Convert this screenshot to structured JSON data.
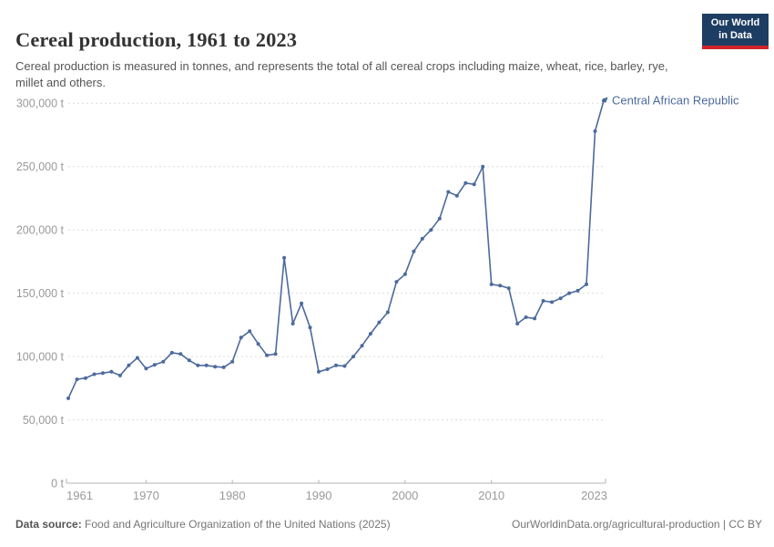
{
  "header": {
    "title": "Cereal production, 1961 to 2023",
    "subtitle": "Cereal production is measured in tonnes, and represents the total of all cereal crops including maize, wheat, rice, barley, rye, millet and others.",
    "logo": {
      "line1": "Our World",
      "line2": "in Data"
    }
  },
  "chart_data": {
    "type": "line",
    "title": "Cereal production, 1961 to 2023",
    "unit": "tonnes",
    "grid": "horizontal dashed gridlines",
    "legend_position": "end-of-line label",
    "xlim": [
      1961,
      2023
    ],
    "ylim": [
      0,
      300000
    ],
    "series": [
      {
        "name": "Central African Republic",
        "x": [
          1961,
          1962,
          1963,
          1964,
          1965,
          1966,
          1967,
          1968,
          1969,
          1970,
          1971,
          1972,
          1973,
          1974,
          1975,
          1976,
          1977,
          1978,
          1979,
          1980,
          1981,
          1982,
          1983,
          1984,
          1985,
          1986,
          1987,
          1988,
          1989,
          1990,
          1991,
          1992,
          1993,
          1994,
          1995,
          1996,
          1997,
          1998,
          1999,
          2000,
          2001,
          2002,
          2003,
          2004,
          2005,
          2006,
          2007,
          2008,
          2009,
          2010,
          2011,
          2012,
          2013,
          2014,
          2015,
          2016,
          2017,
          2018,
          2019,
          2020,
          2021,
          2022,
          2023
        ],
        "values": [
          67000,
          82000,
          83000,
          86000,
          87000,
          88000,
          85000,
          93000,
          99000,
          90500,
          93500,
          96000,
          103000,
          102000,
          97000,
          93000,
          93000,
          92000,
          91500,
          96000,
          115000,
          120000,
          110000,
          101000,
          102000,
          178000,
          126000,
          142000,
          123000,
          88000,
          90000,
          93000,
          92500,
          100000,
          108500,
          118000,
          127000,
          135000,
          159000,
          165000,
          183000,
          193000,
          200000,
          209000,
          230000,
          227000,
          237000,
          236000,
          250000,
          157000,
          156000,
          154000,
          126000,
          131000,
          130000,
          144000,
          143000,
          146000,
          150000,
          152000,
          157000,
          278000,
          302000
        ]
      }
    ],
    "x_ticks": {
      "values": [
        1961,
        1970,
        1980,
        1990,
        2000,
        2010,
        2023
      ],
      "labels": [
        "1961",
        "1970",
        "1980",
        "1990",
        "2000",
        "2010",
        "2023"
      ]
    },
    "y_ticks": {
      "values": [
        0,
        50000,
        100000,
        150000,
        200000,
        250000,
        300000
      ],
      "labels": [
        "0 t",
        "50,000 t",
        "100,000 t",
        "150,000 t",
        "200,000 t",
        "250,000 t",
        "300,000 t"
      ]
    },
    "colors": {
      "line": "#4c6a9c",
      "entity_label": "#4c6a9c",
      "grid": "#dcdcdc",
      "axis": "#b3b3b3",
      "tick_label": "#9a9a9a"
    }
  },
  "footer": {
    "datasource_label": "Data source:",
    "datasource_value": "Food and Agriculture Organization of the United Nations (2025)",
    "link": "OurWorldinData.org/agricultural-production | CC BY"
  }
}
